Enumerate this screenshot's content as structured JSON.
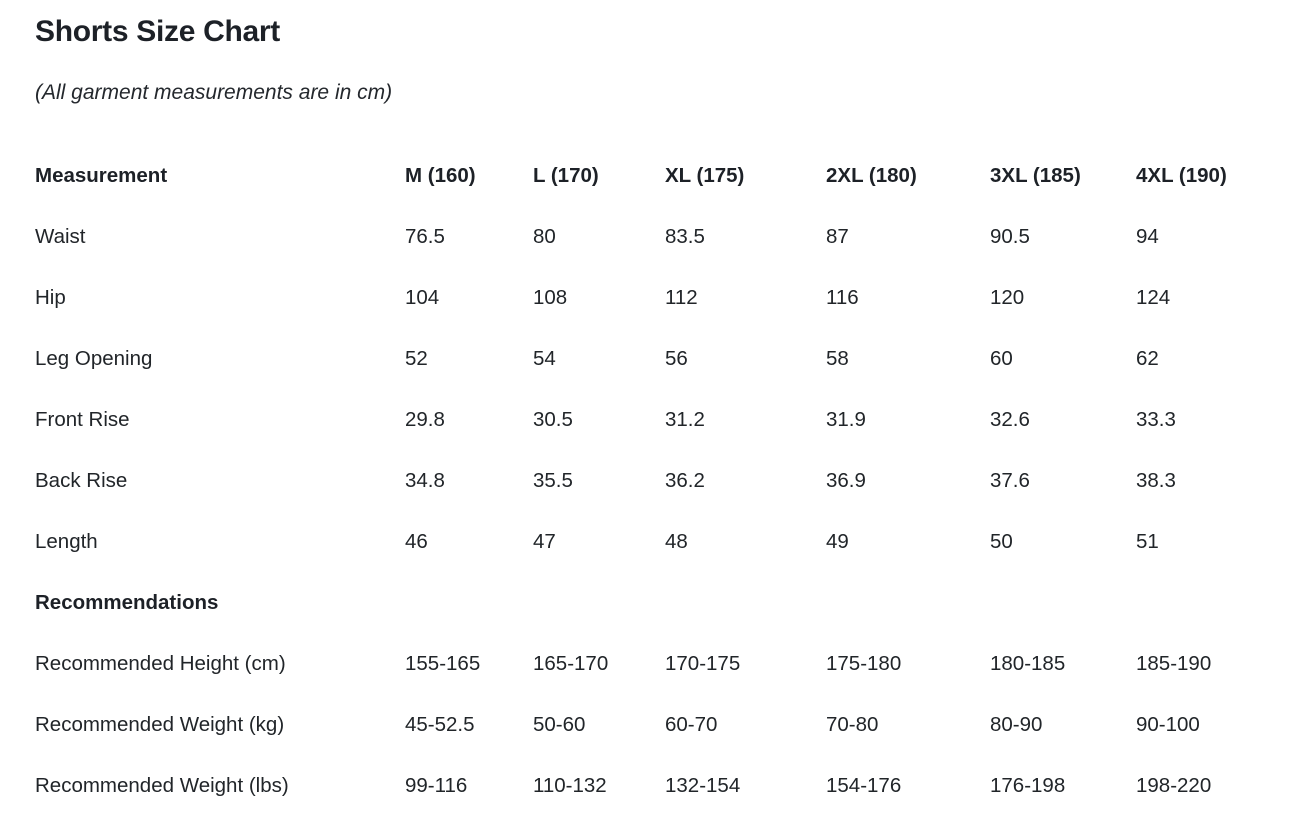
{
  "page": {
    "title": "Shorts Size Chart",
    "subtitle": "(All garment measurements are in cm)"
  },
  "colors": {
    "text": "#212529",
    "heading_text": "#1d2127",
    "background": "#ffffff"
  },
  "chart_data": {
    "type": "table",
    "title": "Shorts Size Chart",
    "note": "(All garment measurements are in cm)",
    "columns": [
      "Measurement",
      "M (160)",
      "L (170)",
      "XL (175)",
      "2XL (180)",
      "3XL (185)",
      "4XL (190)"
    ],
    "rows": [
      {
        "type": "data",
        "label": "Waist",
        "values": [
          "76.5",
          "80",
          "83.5",
          "87",
          "90.5",
          "94"
        ]
      },
      {
        "type": "data",
        "label": "Hip",
        "values": [
          "104",
          "108",
          "112",
          "116",
          "120",
          "124"
        ]
      },
      {
        "type": "data",
        "label": "Leg Opening",
        "values": [
          "52",
          "54",
          "56",
          "58",
          "60",
          "62"
        ]
      },
      {
        "type": "data",
        "label": "Front Rise",
        "values": [
          "29.8",
          "30.5",
          "31.2",
          "31.9",
          "32.6",
          "33.3"
        ]
      },
      {
        "type": "data",
        "label": "Back Rise",
        "values": [
          "34.8",
          "35.5",
          "36.2",
          "36.9",
          "37.6",
          "38.3"
        ]
      },
      {
        "type": "data",
        "label": "Length",
        "values": [
          "46",
          "47",
          "48",
          "49",
          "50",
          "51"
        ]
      },
      {
        "type": "section",
        "label": "Recommendations",
        "values": []
      },
      {
        "type": "data",
        "label": "Recommended Height (cm)",
        "values": [
          "155-165",
          "165-170",
          "170-175",
          "175-180",
          "180-185",
          "185-190"
        ]
      },
      {
        "type": "data",
        "label": "Recommended Weight (kg)",
        "values": [
          "45-52.5",
          "50-60",
          "60-70",
          "70-80",
          "80-90",
          "90-100"
        ]
      },
      {
        "type": "data",
        "label": "Recommended Weight (lbs)",
        "values": [
          "99-116",
          "110-132",
          "132-154",
          "154-176",
          "176-198",
          "198-220"
        ]
      }
    ]
  }
}
